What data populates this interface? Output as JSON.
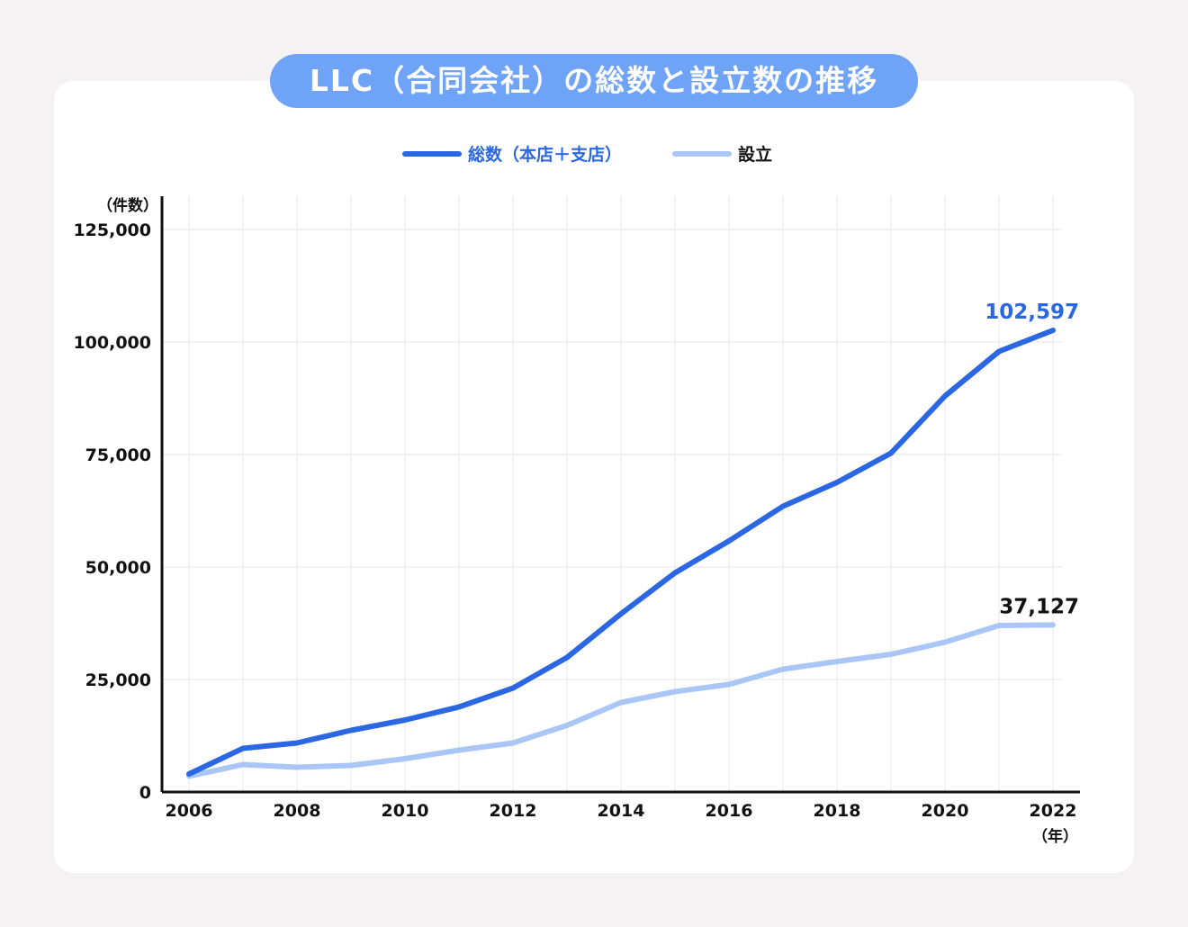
{
  "title": "LLC（合同会社）の総数と設立数の推移",
  "colors": {
    "total": "#2b67e3",
    "established": "#a9c6f7",
    "axis": "#111111",
    "grid": "#ebebeb",
    "title_bg": "#6fa3f7"
  },
  "chart_data": {
    "type": "line",
    "title": "LLC（合同会社）の総数と設立数の推移",
    "ylabel": "（件数）",
    "xlabel": "（年）",
    "ylim": [
      0,
      125000
    ],
    "yticks": [
      0,
      25000,
      50000,
      75000,
      100000,
      125000
    ],
    "ytick_labels": [
      "0",
      "25,000",
      "50,000",
      "75,000",
      "100,000",
      "125,000"
    ],
    "xtick_labels": [
      "2006",
      "2008",
      "2010",
      "2012",
      "2014",
      "2016",
      "2018",
      "2020",
      "2022"
    ],
    "grid": true,
    "legend_position": "top-center",
    "x": [
      2006,
      2007,
      2008,
      2009,
      2010,
      2011,
      2012,
      2013,
      2014,
      2015,
      2016,
      2017,
      2018,
      2019,
      2020,
      2021,
      2022
    ],
    "series": [
      {
        "name": "総数（本店＋支店）",
        "color": "#2b67e3",
        "values": [
          4000,
          9700,
          10900,
          13700,
          16000,
          18900,
          23100,
          29900,
          39600,
          48700,
          55800,
          63500,
          68800,
          75300,
          88000,
          97900,
          102597
        ],
        "end_label": "102,597"
      },
      {
        "name": "設立",
        "color": "#a9c6f7",
        "values": [
          3500,
          6100,
          5500,
          5900,
          7400,
          9300,
          10900,
          14800,
          19900,
          22300,
          23900,
          27300,
          29000,
          30600,
          33300,
          37000,
          37127
        ],
        "end_label": "37,127"
      }
    ]
  }
}
